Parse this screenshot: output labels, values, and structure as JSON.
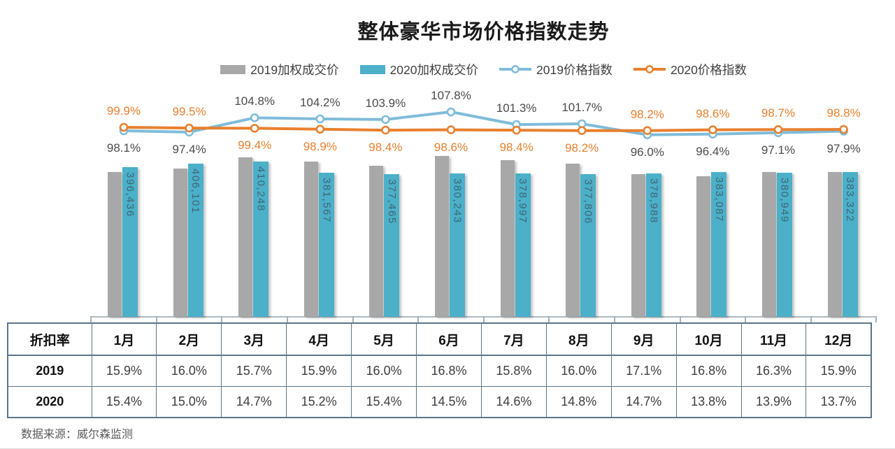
{
  "title": "整体豪华市场价格指数走势",
  "source": "数据来源：威尔森监测",
  "legend": [
    {
      "label": "2019加权成交价",
      "type": "bar",
      "color": "#A8A8A8"
    },
    {
      "label": "2020加权成交价",
      "type": "bar",
      "color": "#4BB0C8"
    },
    {
      "label": "2019价格指数",
      "type": "line",
      "color": "#7FBCD9"
    },
    {
      "label": "2020价格指数",
      "type": "line",
      "color": "#E8802F"
    }
  ],
  "chart_data": {
    "type": "combo-bar-line",
    "title": "整体豪华市场价格指数走势",
    "categories": [
      "1月",
      "2月",
      "3月",
      "4月",
      "5月",
      "6月",
      "7月",
      "8月",
      "9月",
      "10月",
      "11月",
      "12月"
    ],
    "legend_position": "top",
    "grid": false,
    "series": [
      {
        "name": "2019加权成交价",
        "chart_type": "bar",
        "color": "#A8A8A8",
        "values_estimated": [
          383000,
          393000,
          422000,
          411000,
          400000,
          426000,
          415000,
          406000,
          378000,
          372000,
          383000,
          383000
        ],
        "labels_shown": false
      },
      {
        "name": "2020加权成交价",
        "chart_type": "bar",
        "color": "#4BB0C8",
        "values": [
          396436,
          406101,
          410248,
          381567,
          377465,
          380243,
          378997,
          377806,
          378988,
          383087,
          380949,
          383322
        ],
        "labels": [
          "396,436",
          "406,101",
          "410,248",
          "381,567",
          "377,465",
          "380,243",
          "378,997",
          "377,806",
          "378,988",
          "383,087",
          "380,949",
          "383,322"
        ]
      },
      {
        "name": "2019价格指数",
        "chart_type": "line",
        "color": "#7FBCD9",
        "label_color": "#4a4a4a",
        "values_pct": [
          98.1,
          97.4,
          104.8,
          104.2,
          103.9,
          107.8,
          101.3,
          101.7,
          96.0,
          96.4,
          97.1,
          97.9
        ],
        "labels": [
          "98.1%",
          "97.4%",
          "104.8%",
          "104.2%",
          "103.9%",
          "107.8%",
          "101.3%",
          "101.7%",
          "96.0%",
          "96.4%",
          "97.1%",
          "97.9%"
        ]
      },
      {
        "name": "2020价格指数",
        "chart_type": "line",
        "color": "#E8802F",
        "label_color": "#E8802F",
        "values_pct": [
          99.9,
          99.5,
          99.4,
          98.9,
          98.4,
          98.6,
          98.4,
          98.2,
          98.2,
          98.6,
          98.7,
          98.8
        ],
        "labels": [
          "99.9%",
          "99.5%",
          "99.4%",
          "98.9%",
          "98.4%",
          "98.6%",
          "98.4%",
          "98.2%",
          "98.2%",
          "98.6%",
          "98.7%",
          "98.8%"
        ]
      }
    ]
  },
  "table": {
    "corner_label": "折扣率",
    "columns": [
      "1月",
      "2月",
      "3月",
      "4月",
      "5月",
      "6月",
      "7月",
      "8月",
      "9月",
      "10月",
      "11月",
      "12月"
    ],
    "rows": [
      {
        "label": "2019",
        "values": [
          "15.9%",
          "16.0%",
          "15.7%",
          "15.9%",
          "16.0%",
          "16.8%",
          "15.8%",
          "16.0%",
          "17.1%",
          "16.8%",
          "16.3%",
          "15.9%"
        ]
      },
      {
        "label": "2020",
        "values": [
          "15.4%",
          "15.0%",
          "14.7%",
          "15.2%",
          "15.4%",
          "14.5%",
          "14.6%",
          "14.8%",
          "14.7%",
          "13.8%",
          "13.9%",
          "13.7%"
        ]
      }
    ]
  }
}
